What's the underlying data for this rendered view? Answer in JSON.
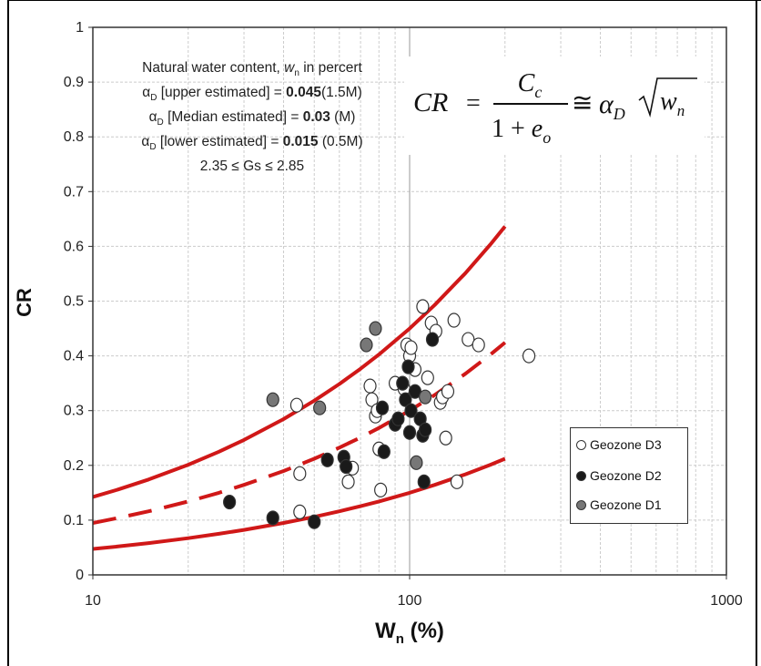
{
  "chart_data": {
    "type": "scatter",
    "xlabel": "W",
    "xlabel_sub": "n",
    "xlabel_unit": " (%)",
    "ylabel": "CR",
    "x_scale": "log",
    "xlim": [
      10,
      1000
    ],
    "ylim": [
      0,
      1
    ],
    "x_ticks": [
      10,
      100,
      1000
    ],
    "x_tick_labels": [
      "10",
      "100",
      "1000"
    ],
    "y_ticks": [
      0,
      0.1,
      0.2,
      0.3,
      0.4,
      0.5,
      0.6,
      0.7,
      0.8,
      0.9,
      1
    ],
    "y_tick_labels": [
      "0",
      "0.1",
      "0.2",
      "0.3",
      "0.4",
      "0.5",
      "0.6",
      "0.7",
      "0.8",
      "0.9",
      "1"
    ],
    "grid": true,
    "legend_placement": "lower-right",
    "colors": {
      "curve": "#d01818",
      "d3_fill": "#ffffff",
      "d2_fill": "#1a1a1a",
      "d1_fill": "#777777",
      "marker_edge": "#333333",
      "grid": "#cccccc"
    },
    "curves": [
      {
        "name": "upper",
        "alpha": 0.045,
        "style": "solid",
        "x": [
          10,
          12,
          15,
          20,
          25,
          30,
          40,
          50,
          60,
          70,
          80,
          100,
          120,
          150,
          180,
          200
        ]
      },
      {
        "name": "median",
        "alpha": 0.03,
        "style": "dashed",
        "x": [
          10,
          12,
          15,
          20,
          25,
          30,
          40,
          50,
          60,
          70,
          80,
          100,
          120,
          150,
          180,
          200
        ]
      },
      {
        "name": "lower",
        "alpha": 0.015,
        "style": "solid",
        "x": [
          10,
          12,
          15,
          20,
          25,
          30,
          40,
          50,
          60,
          70,
          80,
          100,
          120,
          150,
          180,
          200
        ]
      }
    ],
    "series": [
      {
        "name": "Geozone D3",
        "points": [
          [
            44,
            0.31
          ],
          [
            45,
            0.185
          ],
          [
            45,
            0.115
          ],
          [
            64,
            0.17
          ],
          [
            66,
            0.195
          ],
          [
            75,
            0.345
          ],
          [
            76,
            0.32
          ],
          [
            78,
            0.29
          ],
          [
            79,
            0.3
          ],
          [
            80,
            0.23
          ],
          [
            81,
            0.155
          ],
          [
            90,
            0.35
          ],
          [
            96,
            0.34
          ],
          [
            98,
            0.42
          ],
          [
            100,
            0.4
          ],
          [
            101,
            0.415
          ],
          [
            104,
            0.375
          ],
          [
            110,
            0.49
          ],
          [
            114,
            0.36
          ],
          [
            117,
            0.46
          ],
          [
            121,
            0.445
          ],
          [
            125,
            0.315
          ],
          [
            127,
            0.325
          ],
          [
            130,
            0.25
          ],
          [
            132,
            0.335
          ],
          [
            138,
            0.465
          ],
          [
            141,
            0.17
          ],
          [
            153,
            0.43
          ],
          [
            165,
            0.42
          ],
          [
            238,
            0.4
          ]
        ]
      },
      {
        "name": "Geozone D2",
        "points": [
          [
            27,
            0.133
          ],
          [
            37,
            0.104
          ],
          [
            50,
            0.097
          ],
          [
            55,
            0.21
          ],
          [
            62,
            0.215
          ],
          [
            63,
            0.198
          ],
          [
            82,
            0.305
          ],
          [
            83,
            0.225
          ],
          [
            90,
            0.275
          ],
          [
            92,
            0.285
          ],
          [
            95,
            0.35
          ],
          [
            97,
            0.32
          ],
          [
            99,
            0.38
          ],
          [
            100,
            0.26
          ],
          [
            101,
            0.3
          ],
          [
            104,
            0.335
          ],
          [
            108,
            0.285
          ],
          [
            110,
            0.255
          ],
          [
            111,
            0.17
          ],
          [
            112,
            0.265
          ],
          [
            118,
            0.43
          ]
        ]
      },
      {
        "name": "Geozone D1",
        "points": [
          [
            37,
            0.32
          ],
          [
            52,
            0.305
          ],
          [
            73,
            0.42
          ],
          [
            78,
            0.45
          ],
          [
            105,
            0.205
          ],
          [
            112,
            0.325
          ]
        ]
      }
    ],
    "annotations": {
      "line1_pre": "Natural water content, ",
      "line1_w": "w",
      "line1_sub": "n",
      "line1_post": " in percert",
      "alpha_symbol": "α",
      "alpha_sub": "D",
      "line2_a": " [upper estimated] = ",
      "line2_b": "0.045",
      "line2_c": "(1.5M)",
      "line3_a": " [Median estimated] = ",
      "line3_b": "0.03",
      "line3_c": " (M)",
      "line4_a": " [lower estimated] = ",
      "line4_b": "0.015",
      "line4_c": " (0.5M)",
      "line5": "2.35 ≤ Gs ≤ 2.85"
    },
    "formula": {
      "lhs": "CR",
      "eq": "=",
      "num": "C",
      "num_sub": "c",
      "den_pre": "1 + ",
      "den": "e",
      "den_sub": "o",
      "approx": "≅",
      "alpha": "α",
      "alpha_sub": "D",
      "rad": "w",
      "rad_sub": "n"
    }
  }
}
